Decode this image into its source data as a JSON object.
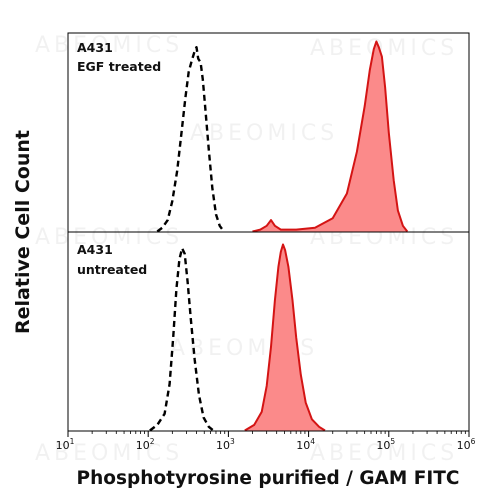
{
  "watermark": "ABEOMICS",
  "chart_data": {
    "type": "area",
    "xlabel": "Phosphotyrosine purified / GAM FITC",
    "ylabel": "Relative Cell Count",
    "x_scale": "log",
    "xlim": [
      10,
      1000000
    ],
    "x_ticks": [
      {
        "value": 10,
        "base": "10",
        "exp": "1"
      },
      {
        "value": 100,
        "base": "10",
        "exp": "2"
      },
      {
        "value": 1000,
        "base": "10",
        "exp": "3"
      },
      {
        "value": 10000,
        "base": "10",
        "exp": "4"
      },
      {
        "value": 100000,
        "base": "10",
        "exp": "5"
      },
      {
        "value": 1000000,
        "base": "10",
        "exp": "6"
      }
    ],
    "grid": false,
    "legend": "none",
    "colors": {
      "control": "#000000",
      "sample_line": "#d41414",
      "sample_fill": "#fb8a8a"
    },
    "panels": [
      {
        "label_line1": "A431",
        "label_line2": "EGF treated",
        "ylim": [
          0,
          1
        ],
        "control_dashed": [
          [
            130,
            0
          ],
          [
            150,
            0.02
          ],
          [
            175,
            0.06
          ],
          [
            200,
            0.16
          ],
          [
            230,
            0.32
          ],
          [
            260,
            0.52
          ],
          [
            290,
            0.7
          ],
          [
            320,
            0.84
          ],
          [
            350,
            0.9
          ],
          [
            380,
            0.95
          ],
          [
            400,
            0.97
          ],
          [
            420,
            0.91
          ],
          [
            450,
            0.89
          ],
          [
            480,
            0.8
          ],
          [
            520,
            0.63
          ],
          [
            570,
            0.43
          ],
          [
            630,
            0.23
          ],
          [
            700,
            0.09
          ],
          [
            780,
            0.03
          ],
          [
            880,
            0
          ]
        ],
        "sample_filled": [
          [
            2000,
            0
          ],
          [
            2500,
            0.01
          ],
          [
            3000,
            0.03
          ],
          [
            3400,
            0.06
          ],
          [
            3800,
            0.03
          ],
          [
            4500,
            0.01
          ],
          [
            7000,
            0.01
          ],
          [
            12000,
            0.02
          ],
          [
            20000,
            0.07
          ],
          [
            30000,
            0.2
          ],
          [
            40000,
            0.42
          ],
          [
            50000,
            0.66
          ],
          [
            58000,
            0.85
          ],
          [
            65000,
            0.96
          ],
          [
            70000,
            1.0
          ],
          [
            75000,
            0.97
          ],
          [
            82000,
            0.92
          ],
          [
            90000,
            0.76
          ],
          [
            100000,
            0.52
          ],
          [
            115000,
            0.27
          ],
          [
            130000,
            0.11
          ],
          [
            150000,
            0.03
          ],
          [
            170000,
            0
          ]
        ]
      },
      {
        "label_line1": "A431",
        "label_line2": "untreated",
        "ylim": [
          0,
          1
        ],
        "control_dashed": [
          [
            105,
            0
          ],
          [
            130,
            0.03
          ],
          [
            160,
            0.09
          ],
          [
            185,
            0.25
          ],
          [
            205,
            0.5
          ],
          [
            225,
            0.76
          ],
          [
            245,
            0.92
          ],
          [
            265,
            0.98
          ],
          [
            285,
            0.95
          ],
          [
            310,
            0.8
          ],
          [
            340,
            0.6
          ],
          [
            380,
            0.38
          ],
          [
            430,
            0.19
          ],
          [
            490,
            0.07
          ],
          [
            570,
            0.02
          ],
          [
            650,
            0
          ]
        ],
        "sample_filled": [
          [
            1600,
            0
          ],
          [
            2100,
            0.03
          ],
          [
            2600,
            0.1
          ],
          [
            3000,
            0.24
          ],
          [
            3400,
            0.45
          ],
          [
            3800,
            0.7
          ],
          [
            4200,
            0.88
          ],
          [
            4500,
            0.96
          ],
          [
            4800,
            1.0
          ],
          [
            5100,
            0.97
          ],
          [
            5600,
            0.88
          ],
          [
            6300,
            0.7
          ],
          [
            7000,
            0.5
          ],
          [
            8000,
            0.3
          ],
          [
            9200,
            0.15
          ],
          [
            11000,
            0.06
          ],
          [
            13500,
            0.02
          ],
          [
            16000,
            0
          ]
        ]
      }
    ]
  }
}
